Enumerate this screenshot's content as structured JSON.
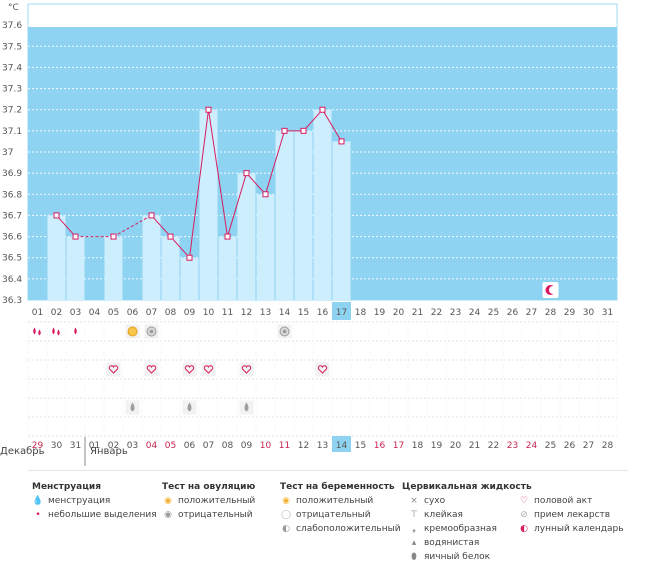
{
  "chart_data": {
    "type": "bar",
    "unit": "°C",
    "ylim": [
      36.3,
      37.7
    ],
    "yticks": [
      "37.6",
      "37.5",
      "37.4",
      "37.3",
      "37.2",
      "37.1",
      "37",
      "36.9",
      "36.8",
      "36.7",
      "36.6",
      "36.5",
      "36.4",
      "36.3"
    ],
    "cycle_days": [
      "01",
      "02",
      "03",
      "04",
      "05",
      "06",
      "07",
      "08",
      "09",
      "10",
      "11",
      "12",
      "13",
      "14",
      "15",
      "16",
      "17",
      "18",
      "19",
      "20",
      "21",
      "22",
      "23",
      "24",
      "25",
      "26",
      "27",
      "28",
      "29",
      "30",
      "31"
    ],
    "highlight_cycle_day": "17",
    "temperatures": [
      null,
      36.7,
      36.6,
      null,
      36.6,
      null,
      36.7,
      36.6,
      36.5,
      37.2,
      36.6,
      36.9,
      36.8,
      37.1,
      37.1,
      37.2,
      37.05,
      null,
      null,
      null,
      null,
      null,
      null,
      null,
      null,
      null,
      null,
      null,
      null,
      null,
      null
    ],
    "calendar_days": [
      "29",
      "30",
      "31",
      "01",
      "02",
      "03",
      "04",
      "05",
      "06",
      "07",
      "08",
      "09",
      "10",
      "11",
      "12",
      "13",
      "14",
      "15",
      "16",
      "17",
      "18",
      "19",
      "20",
      "21",
      "22",
      "23",
      "24",
      "25",
      "26",
      "27",
      "28"
    ],
    "red_calendar_days": [
      0,
      6,
      7,
      12,
      13,
      18,
      19,
      25,
      26
    ],
    "highlight_calendar_day": "14",
    "months": [
      "Декабрь",
      "Январь"
    ],
    "menstruation_days": [
      0,
      1,
      2
    ],
    "light_menstruation_days": [
      2
    ],
    "ovulation_positive_days": [
      5
    ],
    "ovulation_negative_days": [
      6,
      13
    ],
    "intercourse_days": [
      4,
      6,
      8,
      9,
      11,
      15
    ],
    "cervical_days": [
      5,
      8,
      11
    ],
    "lunar_day": 27
  },
  "legend": {
    "menstruation": {
      "title": "Менструация",
      "items": [
        "менструация",
        "небольшие выделения"
      ]
    },
    "ovulation": {
      "title": "Тест на овуляцию",
      "items": [
        "положительный",
        "отрицательный"
      ]
    },
    "pregnancy": {
      "title": "Тест на беременность",
      "items": [
        "положительный",
        "отрицательный",
        "слабоположительный"
      ]
    },
    "cervical": {
      "title": "Цервикальная жидкость",
      "items": [
        "сухо",
        "клейкая",
        "кремообразная",
        "водянистая",
        "яичный белок"
      ]
    },
    "other": {
      "items": [
        "половой акт",
        "прием лекарств",
        "лунный календарь"
      ]
    }
  },
  "colors": {
    "sky": "#8ed4f2",
    "bar": "#cdeefc",
    "line": "#d81b60",
    "highlight": "#8ed4f2"
  }
}
